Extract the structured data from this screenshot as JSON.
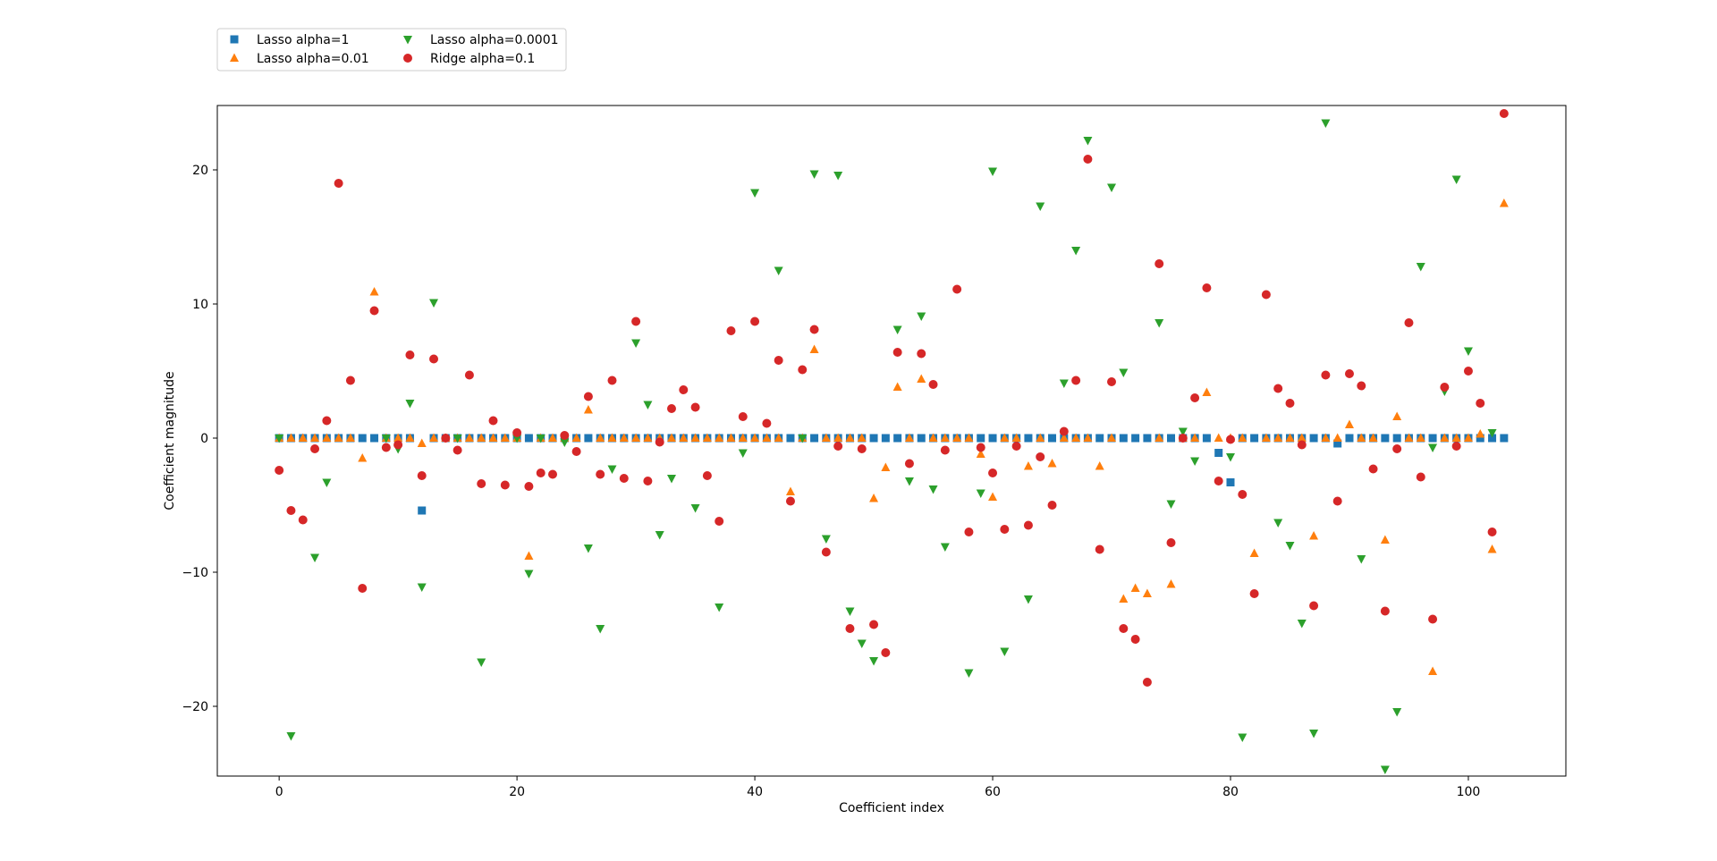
{
  "chart_data": {
    "type": "scatter",
    "xlabel": "Coefficient index",
    "ylabel": "Coefficient magnitude",
    "xlim": [
      -5.2,
      108.2
    ],
    "ylim": [
      -25.2,
      24.8
    ],
    "xticks": [
      0,
      20,
      40,
      60,
      80,
      100
    ],
    "yticks": [
      -20,
      -10,
      0,
      10,
      20
    ],
    "grid": false,
    "legend_position": "top-left, above plot",
    "series": [
      {
        "name": "Lasso alpha=1",
        "marker": "square",
        "color": "#1f77b4",
        "x": [
          0,
          1,
          2,
          3,
          4,
          5,
          6,
          7,
          8,
          9,
          10,
          11,
          12,
          13,
          14,
          15,
          16,
          17,
          18,
          19,
          20,
          21,
          22,
          23,
          24,
          25,
          26,
          27,
          28,
          29,
          30,
          31,
          32,
          33,
          34,
          35,
          36,
          37,
          38,
          39,
          40,
          41,
          42,
          43,
          44,
          45,
          46,
          47,
          48,
          49,
          50,
          51,
          52,
          53,
          54,
          55,
          56,
          57,
          58,
          59,
          60,
          61,
          62,
          63,
          64,
          65,
          66,
          67,
          68,
          69,
          70,
          71,
          72,
          73,
          74,
          75,
          76,
          77,
          78,
          79,
          80,
          81,
          82,
          83,
          84,
          85,
          86,
          87,
          88,
          89,
          90,
          91,
          92,
          93,
          94,
          95,
          96,
          97,
          98,
          99,
          100,
          101,
          102,
          103
        ],
        "y": [
          0,
          0,
          0,
          0,
          0,
          0,
          0,
          0,
          0,
          0,
          0,
          0,
          -5.4,
          0,
          0,
          0,
          0,
          0,
          0,
          0,
          0,
          0,
          0,
          0,
          0,
          0,
          0,
          0,
          0,
          0,
          0,
          0,
          0,
          0,
          0,
          0,
          0,
          0,
          0,
          0,
          0,
          0,
          0,
          0,
          0,
          0,
          0,
          0,
          0,
          0,
          0,
          0,
          0,
          0,
          0,
          0,
          0,
          0,
          0,
          0,
          0,
          0,
          0,
          0,
          0,
          0,
          0,
          0,
          0,
          0,
          0,
          0,
          0,
          0,
          0,
          0,
          0,
          0,
          0,
          -1.1,
          -3.3,
          0,
          0,
          0,
          0,
          0,
          0,
          0,
          0,
          -0.4,
          0,
          0,
          0,
          0,
          0,
          0,
          0,
          0,
          0,
          0,
          0,
          0,
          0,
          0
        ]
      },
      {
        "name": "Lasso alpha=0.01",
        "marker": "triangle-up",
        "color": "#ff7f0e",
        "x": [
          0,
          1,
          2,
          3,
          4,
          5,
          6,
          7,
          8,
          9,
          10,
          11,
          12,
          13,
          14,
          15,
          16,
          17,
          18,
          19,
          20,
          21,
          22,
          23,
          24,
          25,
          26,
          27,
          28,
          29,
          30,
          31,
          32,
          33,
          34,
          35,
          36,
          37,
          38,
          39,
          40,
          41,
          42,
          43,
          44,
          45,
          46,
          47,
          48,
          49,
          50,
          51,
          52,
          53,
          54,
          55,
          56,
          57,
          58,
          59,
          60,
          61,
          62,
          63,
          64,
          65,
          66,
          67,
          68,
          69,
          70,
          71,
          72,
          73,
          74,
          75,
          76,
          77,
          78,
          79,
          80,
          81,
          82,
          83,
          84,
          85,
          86,
          87,
          88,
          89,
          90,
          91,
          92,
          93,
          94,
          95,
          96,
          97,
          98,
          99,
          100,
          101,
          102,
          103
        ],
        "y": [
          0,
          0,
          0,
          0,
          0,
          0,
          0,
          -1.5,
          10.9,
          0,
          0,
          0,
          -0.4,
          0,
          0,
          0,
          0,
          0,
          0,
          0,
          0,
          -8.8,
          0,
          0,
          0,
          0,
          2.1,
          0,
          0,
          0,
          0,
          0,
          0,
          0,
          0,
          0,
          0,
          0,
          0,
          0,
          0,
          0,
          0,
          -4,
          0,
          6.6,
          0,
          0,
          0,
          0,
          -4.5,
          -2.2,
          3.8,
          0,
          4.4,
          0,
          0,
          0,
          0,
          -1.2,
          -4.4,
          0,
          0,
          -2.1,
          0,
          -1.9,
          0,
          0,
          0,
          -2.1,
          0,
          -12,
          -11.2,
          -11.6,
          0,
          -10.9,
          0,
          0,
          3.4,
          0,
          0,
          0,
          -8.6,
          0,
          0,
          0,
          0,
          -7.3,
          0,
          0,
          1,
          0,
          0,
          -7.6,
          1.6,
          0,
          0,
          -17.4,
          0,
          0,
          0,
          0.3,
          -8.3,
          17.5
        ]
      },
      {
        "name": "Lasso alpha=0.0001",
        "marker": "triangle-down",
        "color": "#2ca02c",
        "x": [
          0,
          1,
          3,
          4,
          9,
          10,
          11,
          12,
          13,
          15,
          17,
          20,
          21,
          22,
          24,
          26,
          27,
          28,
          30,
          31,
          32,
          33,
          35,
          37,
          39,
          40,
          42,
          44,
          45,
          46,
          47,
          48,
          49,
          50,
          52,
          53,
          54,
          55,
          56,
          58,
          59,
          60,
          61,
          63,
          64,
          66,
          67,
          68,
          70,
          71,
          74,
          75,
          76,
          77,
          80,
          81,
          84,
          85,
          86,
          87,
          88,
          91,
          93,
          94,
          96,
          97,
          98,
          99,
          100,
          102
        ],
        "y": [
          0,
          -22.2,
          -8.9,
          -3.3,
          0,
          -0.8,
          2.6,
          -11.1,
          10.1,
          0,
          -16.7,
          0,
          -10.1,
          0,
          -0.3,
          -8.2,
          -14.2,
          -2.3,
          7.1,
          2.5,
          -7.2,
          -3,
          -5.2,
          -12.6,
          -1.1,
          18.3,
          12.5,
          0,
          19.7,
          -7.5,
          19.6,
          -12.9,
          -15.3,
          -16.6,
          8.1,
          -3.2,
          9.1,
          -3.8,
          -8.1,
          -17.5,
          -4.1,
          19.9,
          -15.9,
          -12,
          17.3,
          4.1,
          14,
          22.2,
          18.7,
          4.9,
          8.6,
          -4.9,
          0.5,
          -1.7,
          -1.4,
          -22.3,
          -6.3,
          -8,
          -13.8,
          -22,
          23.5,
          -9,
          -24.7,
          -20.4,
          12.8,
          -0.7,
          3.5,
          19.3,
          6.5,
          0.4
        ]
      },
      {
        "name": "Ridge alpha=0.1",
        "marker": "circle",
        "color": "#d62728",
        "x": [
          0,
          1,
          2,
          3,
          4,
          5,
          6,
          7,
          8,
          9,
          10,
          11,
          12,
          13,
          14,
          15,
          16,
          17,
          18,
          19,
          20,
          21,
          22,
          23,
          24,
          25,
          26,
          27,
          28,
          29,
          30,
          31,
          32,
          33,
          34,
          35,
          36,
          37,
          38,
          39,
          40,
          41,
          42,
          43,
          44,
          45,
          46,
          47,
          48,
          49,
          50,
          51,
          52,
          53,
          54,
          55,
          56,
          57,
          58,
          59,
          60,
          61,
          62,
          63,
          64,
          65,
          66,
          67,
          68,
          69,
          70,
          71,
          72,
          73,
          74,
          75,
          76,
          77,
          78,
          79,
          80,
          81,
          82,
          83,
          84,
          85,
          86,
          87,
          88,
          89,
          90,
          91,
          92,
          93,
          94,
          95,
          96,
          97,
          98,
          99,
          100,
          101,
          102,
          103
        ],
        "y": [
          -2.4,
          -5.4,
          -6.1,
          -0.8,
          1.3,
          19,
          4.3,
          -11.2,
          9.5,
          -0.7,
          -0.5,
          6.2,
          -2.8,
          5.9,
          0,
          -0.9,
          4.7,
          -3.4,
          1.3,
          -3.5,
          0.4,
          -3.6,
          -2.6,
          -2.7,
          0.2,
          -1,
          3.1,
          -2.7,
          4.3,
          -3,
          8.7,
          -3.2,
          -0.3,
          2.2,
          3.6,
          2.3,
          -2.8,
          -6.2,
          8,
          1.6,
          8.7,
          1.1,
          5.8,
          -4.7,
          5.1,
          8.1,
          -8.5,
          -0.6,
          -14.2,
          -0.8,
          -13.9,
          -16,
          6.4,
          -1.9,
          6.3,
          4,
          -0.9,
          11.1,
          -7,
          -0.7,
          -2.6,
          -6.8,
          -0.6,
          -6.5,
          -1.4,
          -5,
          0.5,
          4.3,
          20.8,
          -8.3,
          4.2,
          -14.2,
          -15,
          -18.2,
          13,
          -7.8,
          0,
          3,
          11.2,
          -3.2,
          -0.1,
          -4.2,
          -11.6,
          10.7,
          3.7,
          2.6,
          -0.5,
          -12.5,
          4.7,
          -4.7,
          4.8,
          3.9,
          -2.3,
          -12.9,
          -0.8,
          8.6,
          -2.9,
          -13.5,
          3.8,
          -0.6,
          5,
          2.6,
          -7,
          24.2
        ]
      }
    ]
  }
}
